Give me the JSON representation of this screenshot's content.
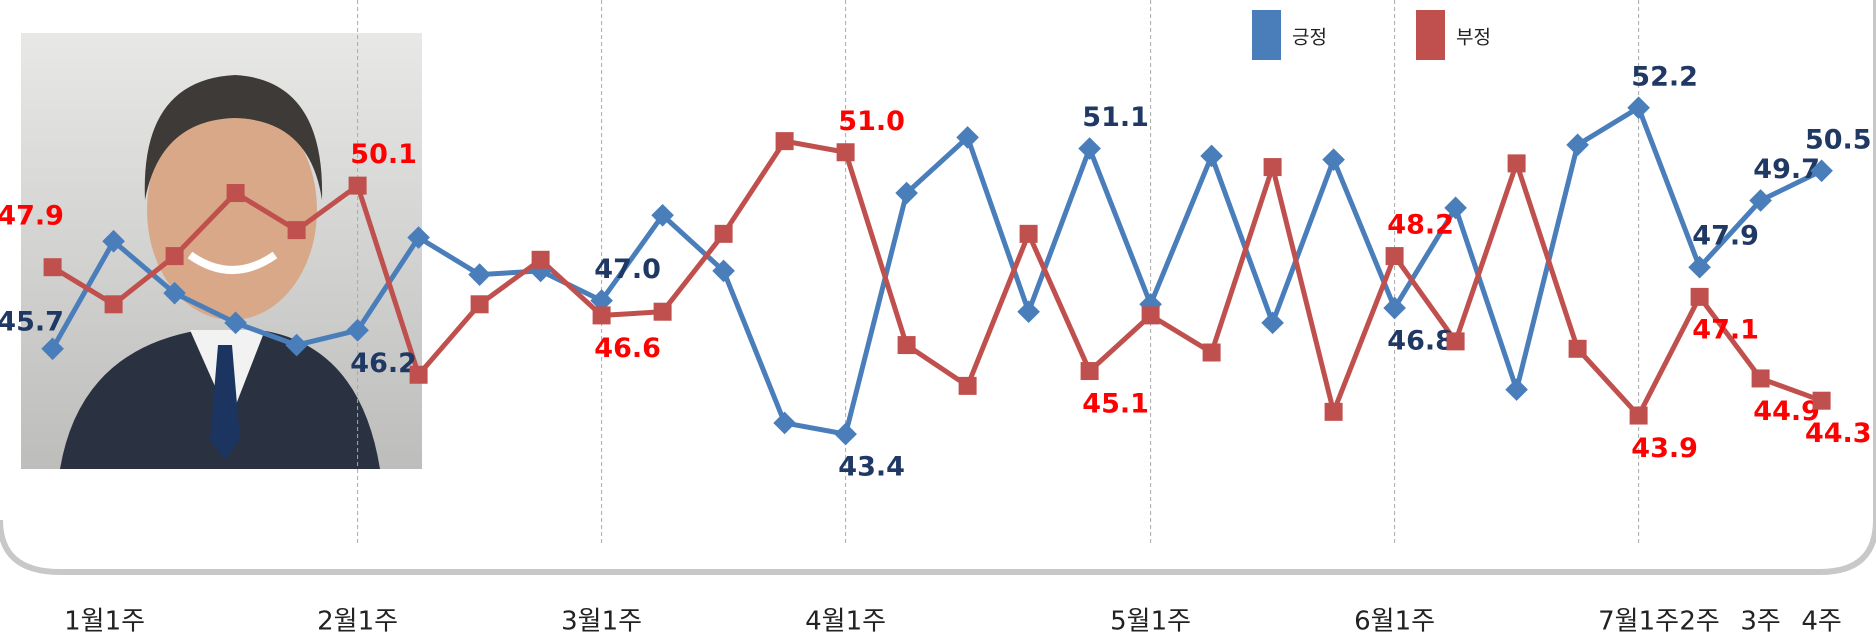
{
  "chart_data": {
    "type": "line",
    "categories": [
      "1월1주",
      null,
      null,
      null,
      null,
      "2월1주",
      null,
      null,
      null,
      "3월1주",
      null,
      null,
      null,
      "4월1주",
      null,
      null,
      null,
      null,
      "5월1주",
      null,
      null,
      null,
      "6월1주",
      null,
      null,
      null,
      "7월1주",
      "2주",
      "3주",
      "4주"
    ],
    "series": [
      {
        "name": "긍정",
        "color": "#4a7ebb",
        "label_color": "#1f3864",
        "values": [
          45.7,
          48.6,
          47.2,
          46.4,
          45.8,
          46.2,
          48.7,
          47.7,
          47.8,
          47.0,
          49.3,
          47.8,
          43.7,
          43.4,
          49.9,
          51.4,
          46.7,
          51.1,
          46.9,
          50.9,
          46.4,
          50.8,
          46.8,
          49.5,
          44.6,
          51.2,
          52.2,
          47.9,
          49.7,
          50.5
        ],
        "value_labels": [
          "45.7",
          null,
          null,
          null,
          null,
          "46.2",
          null,
          null,
          null,
          "47.0",
          null,
          null,
          null,
          "43.4",
          null,
          null,
          null,
          "51.1",
          null,
          null,
          null,
          null,
          "46.8",
          null,
          null,
          null,
          "52.2",
          "47.9",
          "49.7",
          "50.5"
        ]
      },
      {
        "name": "부정",
        "color": "#c0504d",
        "label_color": "#ff0000",
        "values": [
          47.9,
          46.9,
          48.2,
          49.9,
          48.9,
          50.1,
          45.0,
          46.9,
          48.1,
          46.6,
          46.7,
          48.8,
          51.3,
          51.0,
          45.8,
          44.7,
          48.8,
          45.1,
          46.6,
          45.6,
          50.6,
          44.0,
          48.2,
          45.9,
          50.7,
          45.7,
          43.9,
          47.1,
          44.9,
          44.3
        ],
        "value_labels": [
          "47.9",
          null,
          null,
          null,
          null,
          "50.1",
          null,
          null,
          null,
          "46.6",
          null,
          null,
          null,
          "51.0",
          null,
          null,
          null,
          "45.1",
          null,
          null,
          null,
          null,
          "48.2",
          null,
          null,
          null,
          "43.9",
          "47.1",
          "44.9",
          "44.3"
        ]
      }
    ],
    "ylim": [
      42,
      54
    ],
    "grid": true,
    "legend": "top-right"
  }
}
